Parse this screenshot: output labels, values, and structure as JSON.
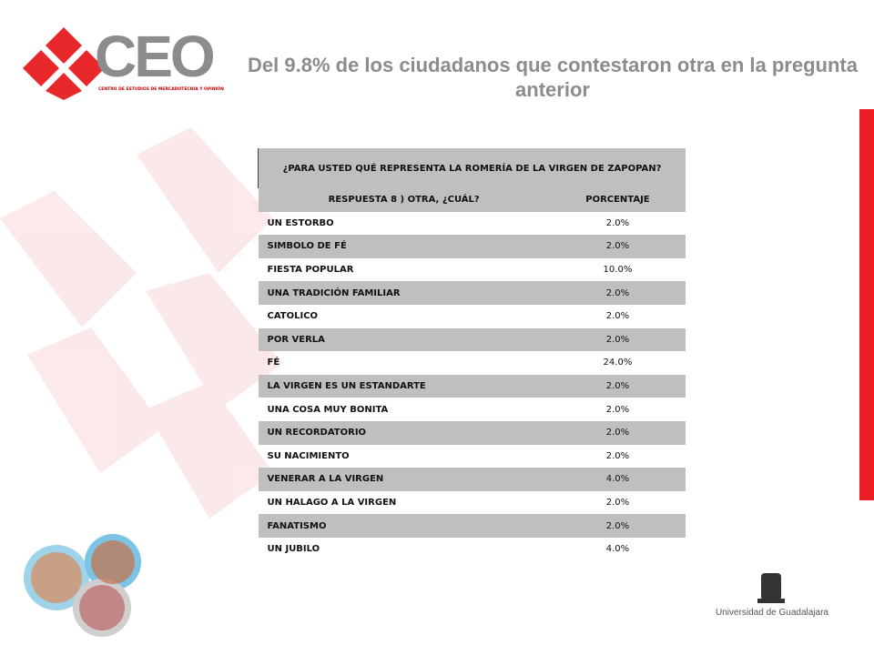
{
  "header": {
    "logo": "CEO",
    "logo_subtitle": "CENTRO DE ESTUDIOS DE MERCADOTECNIA Y OPINIÓN",
    "title": "Del 9.8% de los ciudadanos que contestaron otra en la pregunta anterior"
  },
  "table": {
    "question": "¿PARA USTED QUÉ REPRESENTA LA ROMERÍA DE LA VIRGEN DE ZAPOPAN?",
    "columns": [
      "RESPUESTA 8 ) OTRA, ¿CUÁL?",
      "PORCENTAJE"
    ],
    "rows": [
      [
        "UN ESTORBO",
        "2.0%"
      ],
      [
        "SIMBOLO DE FÉ",
        "2.0%"
      ],
      [
        "FIESTA POPULAR",
        "10.0%"
      ],
      [
        "UNA TRADICIÓN FAMILIAR",
        "2.0%"
      ],
      [
        "CATOLICO",
        "2.0%"
      ],
      [
        "POR VERLA",
        "2.0%"
      ],
      [
        "FÉ",
        "24.0%"
      ],
      [
        "LA VIRGEN ES UN ESTANDARTE",
        "2.0%"
      ],
      [
        "UNA COSA MUY BONITA",
        "2.0%"
      ],
      [
        "UN RECORDATORIO",
        "2.0%"
      ],
      [
        "SU NACIMIENTO",
        "2.0%"
      ],
      [
        "VENERAR A LA VIRGEN",
        "4.0%"
      ],
      [
        "UN HALAGO A LA VIRGEN",
        "2.0%"
      ],
      [
        "FANATISMO",
        "2.0%"
      ],
      [
        "UN JUBILO",
        "4.0%"
      ]
    ]
  },
  "footer": {
    "university": "Universidad de Guadalajara"
  }
}
